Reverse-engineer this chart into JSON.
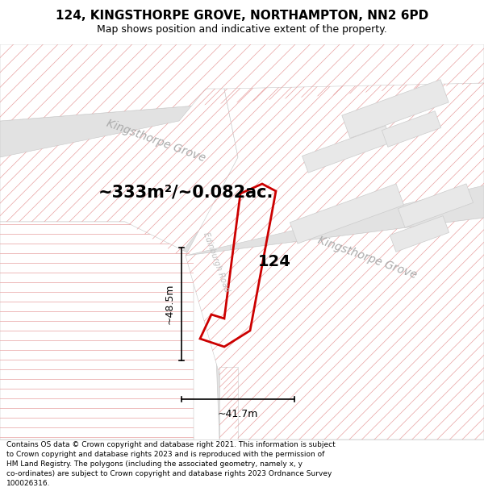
{
  "title_line1": "124, KINGSTHORPE GROVE, NORTHAMPTON, NN2 6PD",
  "title_line2": "Map shows position and indicative extent of the property.",
  "area_text": "~333m²/~0.082ac.",
  "property_number": "124",
  "dim_height": "~48.5m",
  "dim_width": "~41.7m",
  "road_label_top": "Kingsthorpe Grove",
  "road_label_right": "Kingsthorpe Grove",
  "road_label_mid": "Edinburgh Road",
  "footer_text": "Contains OS data © Crown copyright and database right 2021. This information is subject to Crown copyright and database rights 2023 and is reproduced with the permission of HM Land Registry. The polygons (including the associated geometry, namely x, y co-ordinates) are subject to Crown copyright and database rights 2023 Ordnance Survey 100026316.",
  "title_fontsize": 11,
  "subtitle_fontsize": 9,
  "area_fontsize": 15,
  "propnum_fontsize": 14,
  "dim_fontsize": 9,
  "road_fontsize_main": 10,
  "road_fontsize_small": 7,
  "footer_fontsize": 6.5,
  "road_label_color": "#aaaaaa",
  "dim_color": "#000000",
  "text_color": "#000000",
  "footer_color": "#000000",
  "red_poly": "#cc0000",
  "gray_road": "#e0e0e0",
  "pink_line": "#e8a0a0",
  "block_bg": "#f0f0f0"
}
